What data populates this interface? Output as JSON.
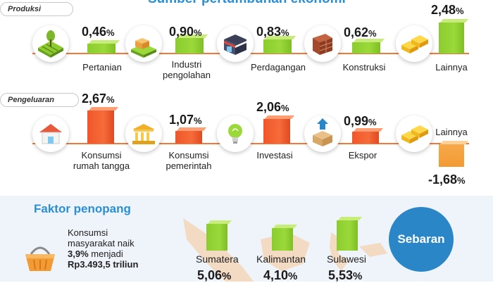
{
  "header": {
    "title": "Sumber pertumbuhan ekonomi"
  },
  "produksi": {
    "tag": "Produksi",
    "items": [
      {
        "label": "Pertanian",
        "value": "0,46",
        "icon": "farmland-icon"
      },
      {
        "label": "Industri pengolahan",
        "value": "0,90",
        "icon": "factory-icon"
      },
      {
        "label": "Perdagangan",
        "value": "0,83",
        "icon": "shop-icon"
      },
      {
        "label": "Konstruksi",
        "value": "0,62",
        "icon": "brick-wall-icon"
      },
      {
        "label": "Lainnya",
        "value": "2,48",
        "icon": "blocks-icon"
      }
    ],
    "pct_suffix": "%"
  },
  "pengeluaran": {
    "tag": "Pengeluaran",
    "items": [
      {
        "label": "Konsumsi rumah tangga",
        "value": "2,67",
        "icon": "house-icon"
      },
      {
        "label": "Konsumsi pemerintah",
        "value": "1,07",
        "icon": "government-building-icon"
      },
      {
        "label": "Investasi",
        "value": "2,06",
        "icon": "lightbulb-icon"
      },
      {
        "label": "Ekspor",
        "value": "0,99",
        "icon": "export-box-icon"
      },
      {
        "label": "Lainnya",
        "value": "-1,68",
        "icon": "blocks-icon"
      }
    ],
    "pct_suffix": "%"
  },
  "faktor": {
    "title": "Faktor penopang",
    "text_line1": "Konsumsi",
    "text_line2": "masyarakat naik",
    "text_line3_bold": "3,9%",
    "text_line3": " menjadi",
    "text_line4": "Rp3.493,5 triliun",
    "icon": "shopping-basket-icon"
  },
  "sebaran": {
    "label": "Sebaran",
    "regions": [
      {
        "name": "Sumatera",
        "value": "5,06"
      },
      {
        "name": "Kalimantan",
        "value": "4,10"
      },
      {
        "name": "Sulawesi",
        "value": "5,53"
      }
    ],
    "pct_suffix": "%"
  },
  "colors": {
    "accent": "#2a8fd4",
    "line": "#f07a3a",
    "green": "#8ccc2e",
    "orange": "#f0562a",
    "yellow": "#f29a34"
  }
}
